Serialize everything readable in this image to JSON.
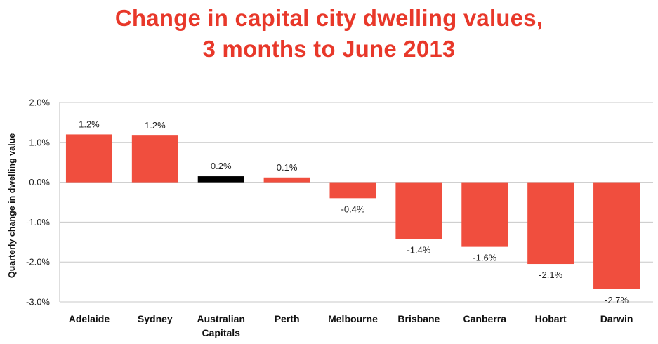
{
  "chart_data": {
    "type": "bar",
    "title_lines": [
      "Change in capital city dwelling values,",
      "3 months to June 2013"
    ],
    "ylabel": "Quarterly change in dwelling value",
    "xlabel": "",
    "categories": [
      [
        "Adelaide"
      ],
      [
        "Sydney"
      ],
      [
        "Australian",
        "Capitals"
      ],
      [
        "Perth"
      ],
      [
        "Melbourne"
      ],
      [
        "Brisbane"
      ],
      [
        "Canberra"
      ],
      [
        "Hobart"
      ],
      [
        "Darwin"
      ]
    ],
    "values": [
      1.2,
      1.17,
      0.15,
      0.12,
      -0.4,
      -1.42,
      -1.62,
      -2.05,
      -2.68
    ],
    "data_labels": [
      "1.2%",
      "1.2%",
      "0.2%",
      "0.1%",
      "-0.4%",
      "-1.4%",
      "-1.6%",
      "-2.1%",
      "-2.7%"
    ],
    "ylim": [
      -3.0,
      2.0
    ],
    "yticks": [
      2.0,
      1.0,
      0.0,
      -1.0,
      -2.0,
      -3.0
    ],
    "ytick_labels": [
      "2.0%",
      "1.0%",
      "0.0%",
      "-1.0%",
      "-2.0%",
      "-3.0%"
    ],
    "grid": true,
    "colors": {
      "bar": "#f04e3e",
      "highlight_bar": "#000000",
      "gridline": "#c8c8c8",
      "title": "#e8382a"
    },
    "highlight_category": "Australian Capitals"
  }
}
